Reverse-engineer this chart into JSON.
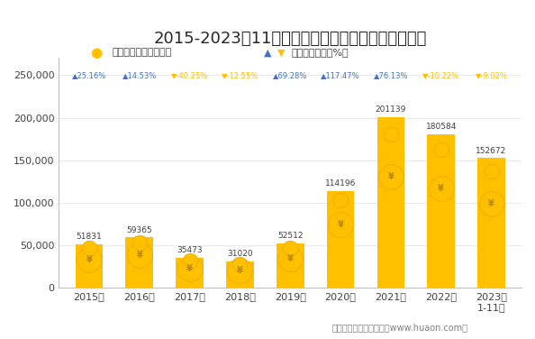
{
  "title": "2015-2023年11月大连商品交易所豆油期货成交金额",
  "years": [
    "2015年",
    "2016年",
    "2017年",
    "2018年",
    "2019年",
    "2020年",
    "2021年",
    "2022年",
    "2023年\n1-11月"
  ],
  "values": [
    51831,
    59365,
    35473,
    31020,
    52512,
    114196,
    201139,
    180584,
    152672
  ],
  "growth_rates": [
    25.16,
    14.53,
    -40.25,
    -12.55,
    69.28,
    117.47,
    76.13,
    -10.22,
    -9.02
  ],
  "growth_up": [
    true,
    true,
    false,
    false,
    true,
    true,
    true,
    false,
    false
  ],
  "bar_color": "#FFC000",
  "line_color": "#4472C4",
  "growth_up_color": "#4472C4",
  "growth_down_color": "#FFC000",
  "bg_color": "#FFFFFF",
  "ylabel_color": "#595959",
  "legend_marker_color": "#FFC000",
  "legend_arrow_up_color": "#4472C4",
  "legend_arrow_down_color": "#FFC000",
  "ylim": [
    0,
    270000
  ],
  "yticks": [
    0,
    50000,
    100000,
    150000,
    200000,
    250000
  ],
  "footer": "制图：华经产业研究院（www.huaon.com）",
  "legend1": "期货成交金额（亿元）",
  "legend2": "累计同比增长（%）"
}
